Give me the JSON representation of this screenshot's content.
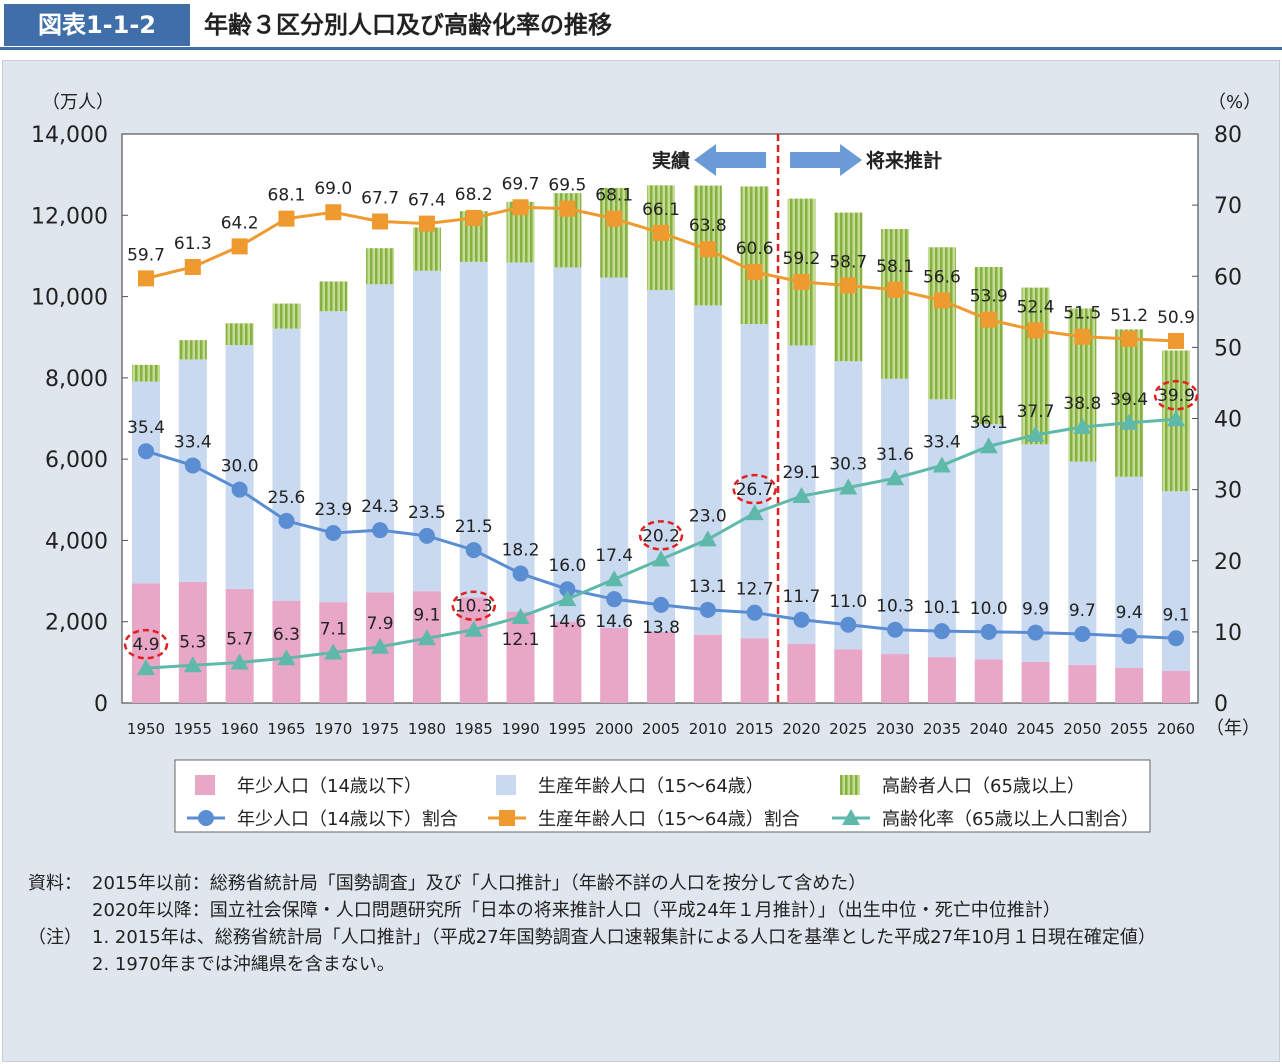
{
  "header": {
    "figure_no": "図表1-1-2",
    "title": "年齢３区分別人口及び高齢化率の推移"
  },
  "chart_data": {
    "type": "bar+line",
    "title": "年齢３区分別人口及び高齢化率の推移",
    "ylabel_left": "（万人）",
    "ylabel_right": "（%）",
    "xlabel": "（年）",
    "ylim_left": [
      0,
      14000
    ],
    "ylim_right": [
      0,
      80
    ],
    "yticks_left": [
      "0",
      "2,000",
      "4,000",
      "6,000",
      "8,000",
      "10,000",
      "12,000",
      "14,000"
    ],
    "yticks_right": [
      "0",
      "10",
      "20",
      "30",
      "40",
      "50",
      "60",
      "70",
      "80"
    ],
    "categories": [
      "1950",
      "1955",
      "1960",
      "1965",
      "1970",
      "1975",
      "1980",
      "1985",
      "1990",
      "1995",
      "2000",
      "2005",
      "2010",
      "2015",
      "2020",
      "2025",
      "2030",
      "2035",
      "2040",
      "2045",
      "2050",
      "2055",
      "2060"
    ],
    "bar_series": [
      {
        "name": "年少人口（14歳以下）",
        "color": "#e8a7c6",
        "values": [
          2943,
          2980,
          2807,
          2517,
          2482,
          2722,
          2751,
          2603,
          2249,
          2001,
          1847,
          1752,
          1680,
          1595,
          1457,
          1324,
          1204,
          1129,
          1073,
          1012,
          939,
          861,
          791
        ]
      },
      {
        "name": "生産年齢人口（15～64歳）",
        "color": "#c8d9f0",
        "values": [
          4966,
          5473,
          6000,
          6693,
          7157,
          7581,
          7883,
          8251,
          8590,
          8716,
          8622,
          8409,
          8103,
          7728,
          7341,
          7085,
          6773,
          6343,
          5787,
          5353,
          5001,
          4706,
          4418
        ]
      },
      {
        "name": "高齢者人口（65歳以上）",
        "color": "#9cc25c",
        "values": [
          411,
          475,
          535,
          618,
          733,
          887,
          1065,
          1247,
          1493,
          1828,
          2204,
          2576,
          2948,
          3387,
          3612,
          3657,
          3685,
          3741,
          3868,
          3856,
          3768,
          3626,
          3464
        ]
      }
    ],
    "line_series": [
      {
        "name": "年少人口（14歳以下）割合",
        "color": "#5b8dd3",
        "marker": "circle",
        "values": [
          35.4,
          33.4,
          30.0,
          25.6,
          23.9,
          24.3,
          23.5,
          21.5,
          18.2,
          16.0,
          14.6,
          13.8,
          13.1,
          12.7,
          11.7,
          11.0,
          10.3,
          10.1,
          10.0,
          9.9,
          9.7,
          9.4,
          9.1
        ]
      },
      {
        "name": "生産年齢人口（15～64歳）割合",
        "color": "#ee9a2e",
        "marker": "square",
        "values": [
          59.7,
          61.3,
          64.2,
          68.1,
          69.0,
          67.7,
          67.4,
          68.2,
          69.7,
          69.5,
          68.1,
          66.1,
          63.8,
          60.6,
          59.2,
          58.7,
          58.1,
          56.6,
          53.9,
          52.4,
          51.5,
          51.2,
          50.9
        ]
      },
      {
        "name": "高齢化率（65歳以上人口割合）",
        "color": "#5fb9aa",
        "marker": "triangle",
        "values": [
          4.9,
          5.3,
          5.7,
          6.3,
          7.1,
          7.9,
          9.1,
          10.3,
          12.1,
          14.6,
          17.4,
          20.2,
          23.0,
          26.7,
          29.1,
          30.3,
          31.6,
          33.4,
          36.1,
          37.7,
          38.8,
          39.4,
          39.9
        ]
      }
    ],
    "highlighted_aging_rates": [
      "1950",
      "1985",
      "2005",
      "2015",
      "2060"
    ],
    "divider_after": "2015",
    "annotation_actual": "実績",
    "annotation_projection": "将来推計",
    "grid": false,
    "legend": "bottom"
  },
  "notes": {
    "source_label": "資料：",
    "source_1": "2015年以前：総務省統計局「国勢調査」及び「人口推計」（年齢不詳の人口を按分して含めた）",
    "source_2": "2020年以降：国立社会保障・人口問題研究所「日本の将来推計人口（平成24年１月推計）」（出生中位・死亡中位推計）",
    "note_label": "（注）",
    "note_1": "1. 2015年は、総務省統計局「人口推計」（平成27年国勢調査人口速報集計による人口を基準とした平成27年10月１日現在確定値）",
    "note_2": "2. 1970年までは沖縄県を含まない。"
  }
}
